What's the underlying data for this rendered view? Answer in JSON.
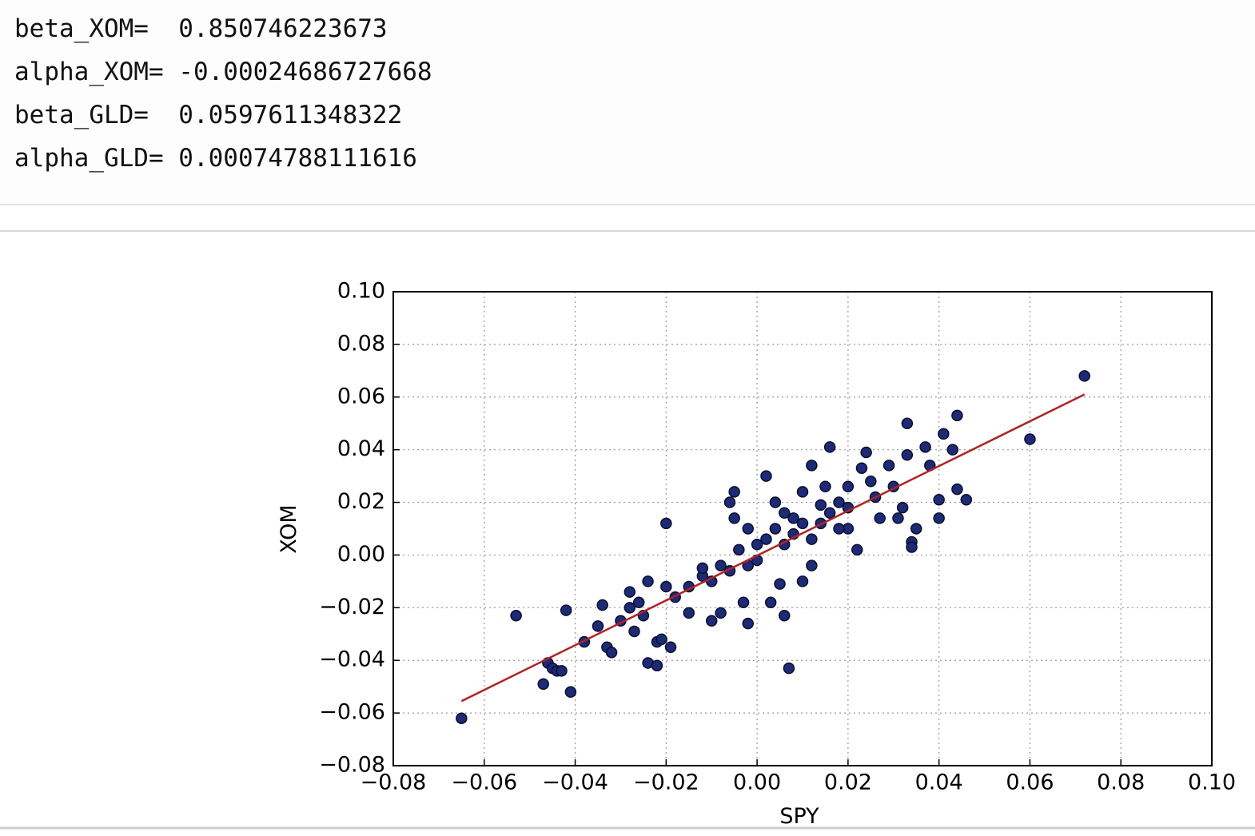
{
  "output": {
    "lines": [
      "beta_XOM=  0.850746223673",
      "alpha_XOM= -0.00024686727668",
      "beta_GLD=  0.0597611348322",
      "alpha_GLD= 0.00074788111616"
    ]
  },
  "chart_data": {
    "type": "scatter",
    "xlabel": "SPY",
    "ylabel": "XOM",
    "xlim": [
      -0.08,
      0.1
    ],
    "ylim": [
      -0.08,
      0.1
    ],
    "xticks": [
      {
        "value": -0.08,
        "label": "−0.08"
      },
      {
        "value": -0.06,
        "label": "−0.06"
      },
      {
        "value": -0.04,
        "label": "−0.04"
      },
      {
        "value": -0.02,
        "label": "−0.02"
      },
      {
        "value": 0,
        "label": "0.00"
      },
      {
        "value": 0.02,
        "label": "0.02"
      },
      {
        "value": 0.04,
        "label": "0.04"
      },
      {
        "value": 0.06,
        "label": "0.06"
      },
      {
        "value": 0.08,
        "label": "0.08"
      },
      {
        "value": 0.1,
        "label": "0.10"
      }
    ],
    "yticks": [
      {
        "value": -0.08,
        "label": "−0.08"
      },
      {
        "value": -0.06,
        "label": "−0.06"
      },
      {
        "value": -0.04,
        "label": "−0.04"
      },
      {
        "value": -0.02,
        "label": "−0.02"
      },
      {
        "value": 0,
        "label": "0.00"
      },
      {
        "value": 0.02,
        "label": "0.02"
      },
      {
        "value": 0.04,
        "label": "0.04"
      },
      {
        "value": 0.06,
        "label": "0.06"
      },
      {
        "value": 0.08,
        "label": "0.08"
      },
      {
        "value": 0.1,
        "label": "0.10"
      }
    ],
    "grid": true,
    "series": [
      {
        "color": "#1c2a78",
        "x": [
          -0.065,
          -0.053,
          -0.047,
          -0.046,
          -0.045,
          -0.044,
          -0.043,
          -0.042,
          -0.041,
          -0.038,
          -0.035,
          -0.034,
          -0.033,
          -0.032,
          -0.03,
          -0.028,
          -0.027,
          -0.025,
          -0.024,
          -0.022,
          -0.022,
          -0.021,
          -0.02,
          -0.019,
          -0.02,
          -0.015,
          -0.012,
          -0.01,
          -0.008,
          -0.006,
          -0.005,
          -0.003,
          -0.002,
          0.0,
          0.002,
          0.003,
          0.005,
          0.006,
          0.007,
          0.008,
          0.01,
          0.012,
          0.014,
          0.016,
          0.018,
          0.02,
          0.022,
          0.023,
          0.024,
          0.025,
          0.026,
          0.027,
          0.029,
          0.03,
          0.031,
          0.032,
          0.033,
          0.033,
          0.034,
          0.034,
          0.035,
          0.037,
          0.038,
          0.04,
          0.04,
          0.041,
          0.043,
          0.044,
          0.044,
          0.046,
          0.06,
          0.072,
          -0.015,
          -0.012,
          -0.01,
          -0.008,
          -0.006,
          -0.004,
          -0.002,
          0.0,
          0.002,
          0.004,
          0.006,
          0.008,
          0.01,
          0.012,
          0.014,
          0.016,
          0.018,
          0.02,
          -0.018,
          -0.024,
          -0.026,
          -0.028,
          -0.005,
          0.004,
          0.01,
          0.012,
          -0.002,
          0.006,
          0.015,
          0.02
        ],
        "values": [
          -0.062,
          -0.023,
          -0.049,
          -0.041,
          -0.043,
          -0.044,
          -0.044,
          -0.021,
          -0.052,
          -0.033,
          -0.027,
          -0.019,
          -0.035,
          -0.037,
          -0.025,
          -0.02,
          -0.029,
          -0.023,
          -0.041,
          -0.042,
          -0.033,
          -0.032,
          -0.012,
          -0.035,
          0.012,
          -0.022,
          -0.008,
          -0.025,
          -0.022,
          0.02,
          0.024,
          -0.018,
          -0.026,
          0.004,
          0.03,
          -0.018,
          -0.011,
          -0.023,
          -0.043,
          0.008,
          -0.01,
          0.034,
          0.019,
          0.041,
          0.02,
          0.01,
          0.002,
          0.033,
          0.039,
          0.028,
          0.022,
          0.014,
          0.034,
          0.026,
          0.014,
          0.018,
          0.05,
          0.038,
          0.005,
          0.003,
          0.01,
          0.041,
          0.034,
          0.021,
          0.014,
          0.046,
          0.04,
          0.053,
          0.025,
          0.021,
          0.044,
          0.068,
          -0.012,
          -0.005,
          -0.01,
          -0.004,
          -0.006,
          0.002,
          -0.004,
          -0.002,
          0.006,
          0.01,
          0.004,
          0.014,
          0.012,
          0.006,
          0.012,
          0.016,
          0.01,
          0.018,
          -0.016,
          -0.01,
          -0.018,
          -0.014,
          0.014,
          0.02,
          0.024,
          -0.004,
          0.01,
          0.016,
          0.026,
          0.026
        ]
      }
    ],
    "fit_line": {
      "color": "#b22222",
      "x": [
        -0.065,
        0.072
      ],
      "values": [
        -0.0555,
        0.061
      ]
    }
  }
}
